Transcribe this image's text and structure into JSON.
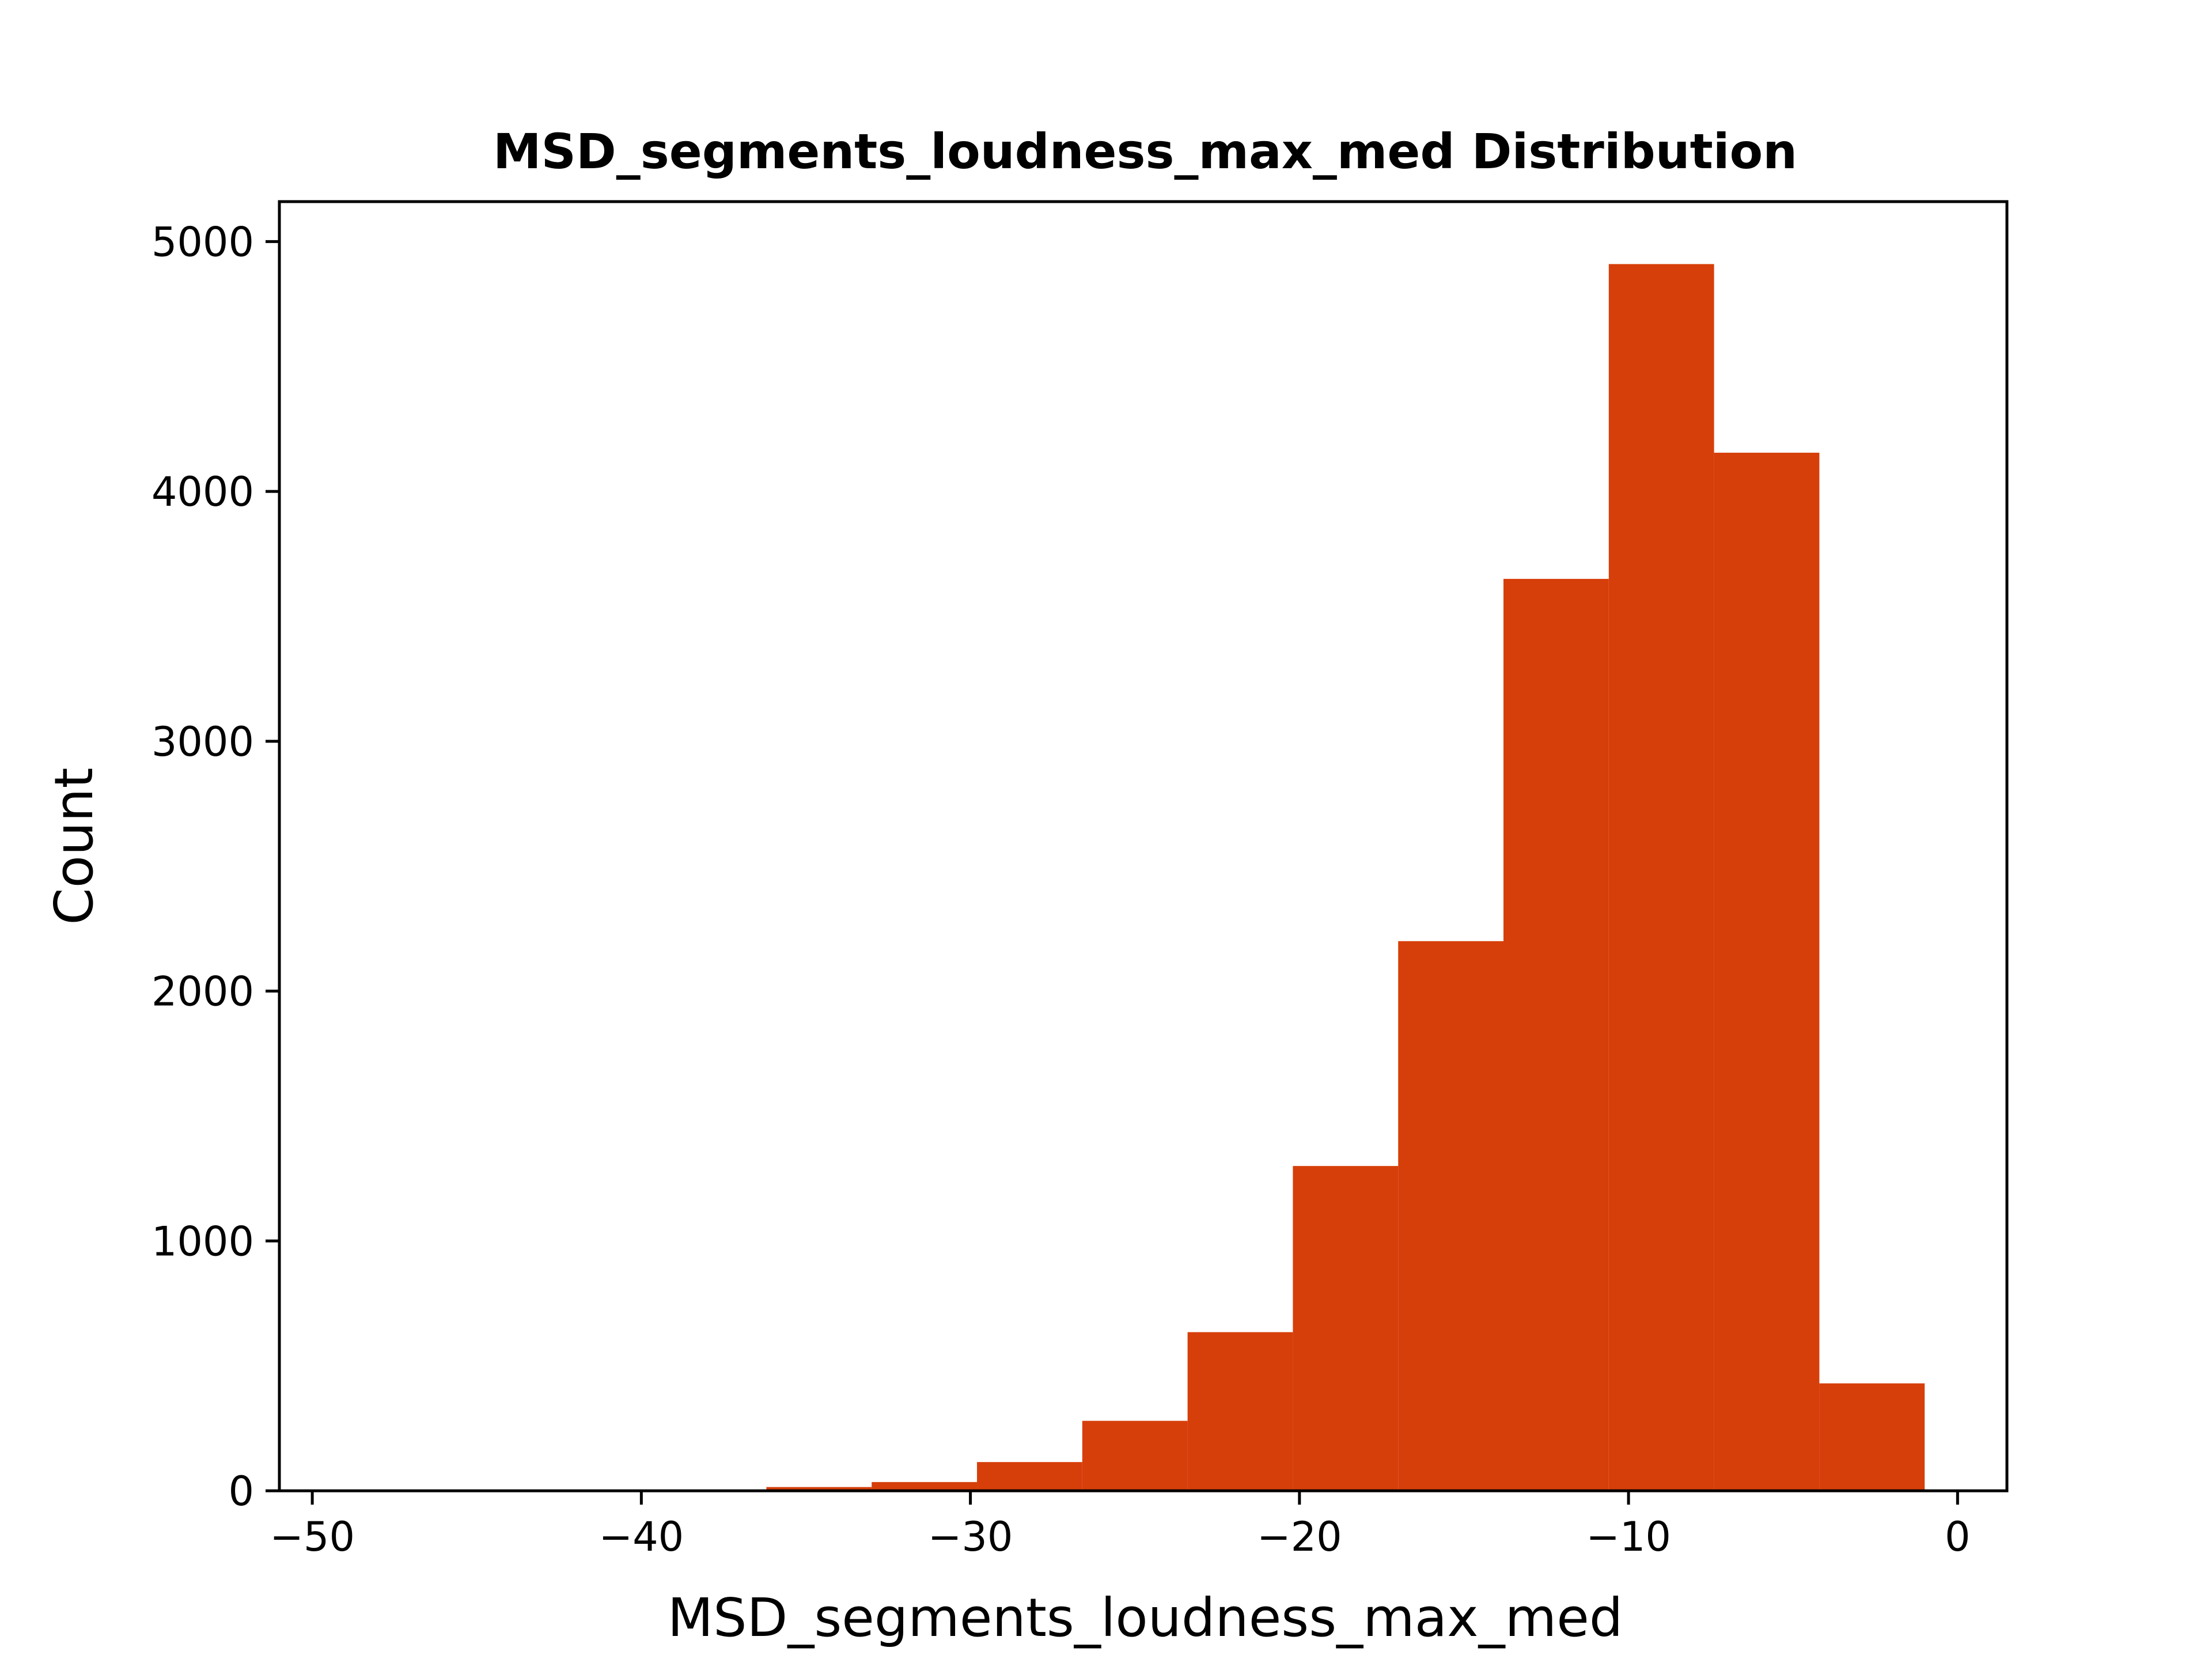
{
  "colors": {
    "bar": "#d63f0a",
    "axes": "#000000"
  },
  "chart_data": {
    "type": "bar",
    "title": "MSD_segments_loudness_max_med Distribution",
    "xlabel": "MSD_segments_loudness_max_med",
    "ylabel": "Count",
    "xlim": [
      -51,
      1.5
    ],
    "ylim": [
      0,
      5160
    ],
    "xticks": [
      -50,
      -40,
      -30,
      -20,
      -10,
      0
    ],
    "xtick_labels": [
      "−50",
      "−40",
      "−30",
      "−20",
      "−10",
      "0"
    ],
    "yticks": [
      0,
      1000,
      2000,
      3000,
      4000,
      5000
    ],
    "ytick_labels": [
      "0",
      "1000",
      "2000",
      "3000",
      "4000",
      "5000"
    ],
    "bins": [
      {
        "x0": -48.9,
        "x1": -45.8,
        "value": 0
      },
      {
        "x0": -45.8,
        "x1": -42.6,
        "value": 0
      },
      {
        "x0": -42.6,
        "x1": -39.4,
        "value": 0
      },
      {
        "x0": -39.4,
        "x1": -36.2,
        "value": 2
      },
      {
        "x0": -36.2,
        "x1": -33.0,
        "value": 15
      },
      {
        "x0": -33.0,
        "x1": -29.8,
        "value": 35
      },
      {
        "x0": -29.8,
        "x1": -26.6,
        "value": 115
      },
      {
        "x0": -26.6,
        "x1": -23.4,
        "value": 280
      },
      {
        "x0": -23.4,
        "x1": -20.2,
        "value": 635
      },
      {
        "x0": -20.2,
        "x1": -17.0,
        "value": 1300
      },
      {
        "x0": -17.0,
        "x1": -13.8,
        "value": 2200
      },
      {
        "x0": -13.8,
        "x1": -10.6,
        "value": 3650
      },
      {
        "x0": -10.6,
        "x1": -7.4,
        "value": 4910
      },
      {
        "x0": -7.4,
        "x1": -4.2,
        "value": 4155
      },
      {
        "x0": -4.2,
        "x1": -1.0,
        "value": 430
      }
    ],
    "grid": false,
    "legend": "none"
  }
}
